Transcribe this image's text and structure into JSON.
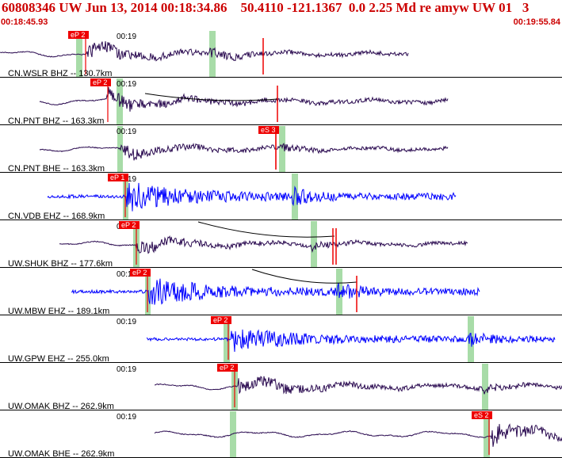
{
  "header": {
    "title": "60808346 UW Jun 13, 2014 00:18:34.86    50.4110 -121.1367  0.0 2.25 Md re amyw UW 01   3",
    "start_time": "00:18:45.93",
    "end_time": "00:19:55.84"
  },
  "colors": {
    "header_text": "#cc0000",
    "trace_default": "#2a0a50",
    "trace_blue": "#0000ff",
    "pick_box": "#ee0000",
    "s_window": "#a8dca8",
    "moveout_curve": "#000000"
  },
  "time_axis": {
    "tick_label": "00:19"
  },
  "traces": [
    {
      "label": "CN.WSLR BHZ -- 130.7km",
      "color": "trace_default",
      "pick_label": "eP 2",
      "has_curve": false
    },
    {
      "label": "CN.PNT BHZ -- 163.3km",
      "color": "trace_default",
      "pick_label": "eP 2",
      "has_curve": true
    },
    {
      "label": "CN.PNT BHE -- 163.3km",
      "color": "trace_default",
      "pick_label": "eS 3",
      "has_curve": false
    },
    {
      "label": "CN.VDB EHZ -- 168.9km",
      "color": "trace_blue",
      "pick_label": "eP 1",
      "has_curve": false
    },
    {
      "label": "UW.SHUK BHZ -- 177.6km",
      "color": "trace_default",
      "pick_label": "eP 2",
      "has_curve": true
    },
    {
      "label": "UW.MBW EHZ -- 189.1km",
      "color": "trace_blue",
      "pick_label": "eP 2",
      "has_curve": true
    },
    {
      "label": "UW.GPW EHZ -- 255.0km",
      "color": "trace_blue",
      "pick_label": "eP 2",
      "has_curve": false
    },
    {
      "label": "UW.OMAK BHZ -- 262.9km",
      "color": "trace_default",
      "pick_label": "eP 2",
      "has_curve": false
    },
    {
      "label": "UW.OMAK BHE -- 262.9km",
      "color": "trace_default",
      "pick_label": "eS 2",
      "has_curve": false
    }
  ]
}
